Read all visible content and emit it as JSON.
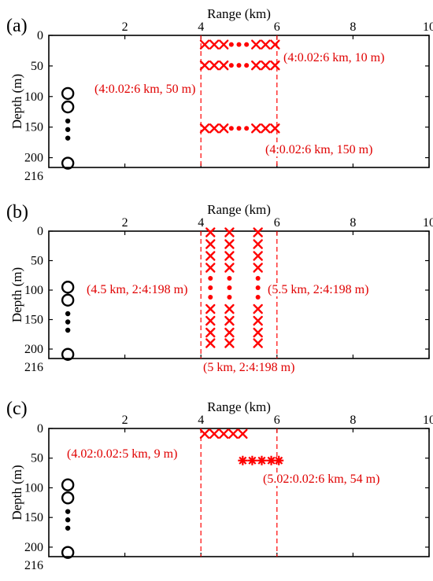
{
  "figure": {
    "panels": [
      {
        "label": "(a)",
        "xlabel": "Range (km)",
        "ylabel": "Depth (m)",
        "xticks": [
          "2",
          "4",
          "6",
          "8",
          "10"
        ],
        "yticks": [
          "0",
          "50",
          "100",
          "150",
          "200"
        ],
        "ybottom_label": "216",
        "annotations": [
          {
            "text": "(4:0.02:6 km, 10 m)"
          },
          {
            "text": "(4:0.02:6 km, 50 m)"
          },
          {
            "text": "(4:0.02:6 km, 150 m)"
          }
        ]
      },
      {
        "label": "(b)",
        "xlabel": "Range (km)",
        "ylabel": "Depth (m)",
        "xticks": [
          "2",
          "4",
          "6",
          "8",
          "10"
        ],
        "yticks": [
          "0",
          "50",
          "100",
          "150",
          "200"
        ],
        "ybottom_label": "216",
        "annotations": [
          {
            "text": "(4.5 km, 2:4:198 m)"
          },
          {
            "text": "(5.5 km, 2:4:198 m)"
          },
          {
            "text": "(5 km, 2:4:198 m)"
          }
        ]
      },
      {
        "label": "(c)",
        "xlabel": "Range (km)",
        "ylabel": "Depth (m)",
        "xticks": [
          "2",
          "4",
          "6",
          "8",
          "10"
        ],
        "yticks": [
          "0",
          "50",
          "100",
          "150",
          "200"
        ],
        "ybottom_label": "216",
        "annotations": [
          {
            "text": "(4.02:0.02:5 km, 9 m)"
          },
          {
            "text": "(5.02:0.02:6 km, 54 m)"
          }
        ]
      }
    ]
  },
  "colors": {
    "marker": "#ff0000",
    "text_annotation": "#e00000",
    "axis": "#000000",
    "receiver": "#000000"
  },
  "chart_data": [
    {
      "type": "scatter",
      "xlim": [
        0,
        10
      ],
      "ylim": [
        0,
        216
      ],
      "y_inverted": true,
      "grid": false,
      "vertical_lines_x": [
        4,
        6
      ],
      "receivers": {
        "x": 0.5,
        "circle_depths": [
          95,
          117,
          209
        ],
        "dot_depths": [
          140,
          154,
          168
        ]
      },
      "series": [
        {
          "marker": "x",
          "rows": [
            {
              "y": 15,
              "x": [
                4.1,
                4.35,
                4.6,
                5.45,
                5.7,
                5.95
              ]
            },
            {
              "y": 49,
              "x": [
                4.1,
                4.35,
                4.6,
                5.45,
                5.7,
                5.95
              ]
            },
            {
              "y": 152,
              "x": [
                4.1,
                4.35,
                4.6,
                5.45,
                5.7,
                5.95
              ]
            }
          ]
        },
        {
          "marker": "dot",
          "rows": [
            {
              "y": 15,
              "x": [
                4.8,
                5.0,
                5.2
              ]
            },
            {
              "y": 49,
              "x": [
                4.8,
                5.0,
                5.2
              ]
            },
            {
              "y": 152,
              "x": [
                4.8,
                5.0,
                5.2
              ]
            }
          ]
        }
      ]
    },
    {
      "type": "scatter",
      "xlim": [
        0,
        10
      ],
      "ylim": [
        0,
        216
      ],
      "y_inverted": true,
      "grid": false,
      "vertical_lines_x": [
        4,
        6
      ],
      "receivers": {
        "x": 0.5,
        "circle_depths": [
          95,
          117,
          209
        ],
        "dot_depths": [
          140,
          154,
          168
        ]
      },
      "series": [
        {
          "marker": "x",
          "columns": [
            {
              "x": 4.25,
              "y": [
                2,
                22,
                42,
                62,
                132,
                152,
                172,
                190
              ]
            },
            {
              "x": 4.75,
              "y": [
                2,
                22,
                42,
                62,
                132,
                152,
                172,
                190
              ]
            },
            {
              "x": 5.5,
              "y": [
                2,
                22,
                42,
                62,
                132,
                152,
                172,
                190
              ]
            }
          ]
        },
        {
          "marker": "dot",
          "columns": [
            {
              "x": 4.25,
              "y": [
                80,
                96,
                112
              ]
            },
            {
              "x": 4.75,
              "y": [
                80,
                96,
                112
              ]
            },
            {
              "x": 5.5,
              "y": [
                80,
                96,
                112
              ]
            }
          ]
        }
      ]
    },
    {
      "type": "scatter",
      "xlim": [
        0,
        10
      ],
      "ylim": [
        0,
        216
      ],
      "y_inverted": true,
      "grid": false,
      "vertical_lines_x": [
        4,
        6
      ],
      "receivers": {
        "x": 0.5,
        "circle_depths": [
          95,
          117,
          209
        ],
        "dot_depths": [
          140,
          154,
          168
        ]
      },
      "series": [
        {
          "marker": "x",
          "rows": [
            {
              "y": 9,
              "x": [
                4.1,
                4.35,
                4.6,
                4.85,
                5.1
              ]
            }
          ]
        },
        {
          "marker": "asterisk",
          "rows": [
            {
              "y": 54,
              "x": [
                5.1,
                5.35,
                5.6,
                5.85,
                6.05
              ]
            }
          ]
        }
      ]
    }
  ]
}
